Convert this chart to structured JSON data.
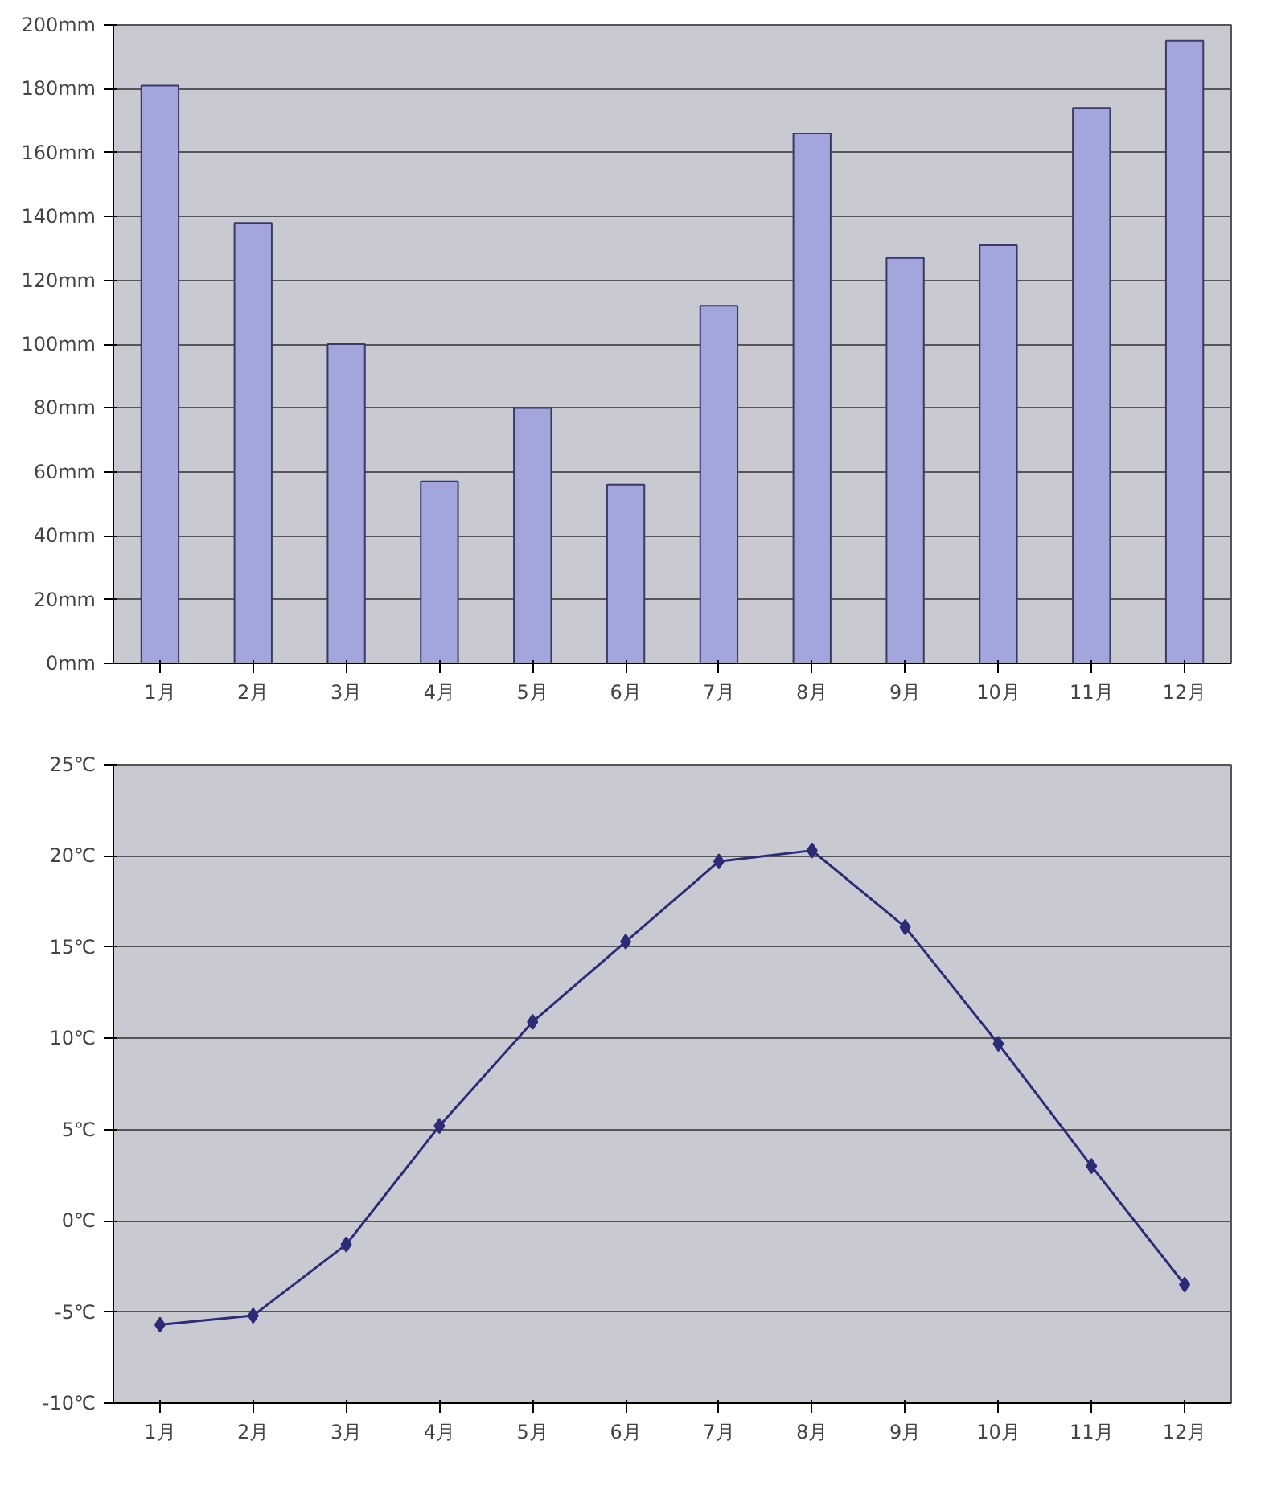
{
  "chart_data": [
    {
      "type": "bar",
      "categories": [
        "1月",
        "2月",
        "3月",
        "4月",
        "5月",
        "6月",
        "7月",
        "8月",
        "9月",
        "10月",
        "11月",
        "12月"
      ],
      "values": [
        181,
        138,
        100,
        57,
        80,
        56,
        112,
        166,
        127,
        131,
        174,
        195
      ],
      "color": "#a3a6dc",
      "ylim": [
        0,
        200
      ],
      "yticks": [
        {
          "value": 0,
          "label": "0mm"
        },
        {
          "value": 20,
          "label": "20mm"
        },
        {
          "value": 40,
          "label": "40mm"
        },
        {
          "value": 60,
          "label": "60mm"
        },
        {
          "value": 80,
          "label": "80mm"
        },
        {
          "value": 100,
          "label": "100mm"
        },
        {
          "value": 120,
          "label": "120mm"
        },
        {
          "value": 140,
          "label": "140mm"
        },
        {
          "value": 160,
          "label": "160mm"
        },
        {
          "value": 180,
          "label": "180mm"
        },
        {
          "value": 200,
          "label": "200mm"
        }
      ],
      "grid": "y"
    },
    {
      "type": "line",
      "categories": [
        "1月",
        "2月",
        "3月",
        "4月",
        "5月",
        "6月",
        "7月",
        "8月",
        "9月",
        "10月",
        "11月",
        "12月"
      ],
      "values": [
        -5.7,
        -5.2,
        -1.3,
        5.2,
        10.9,
        15.3,
        19.7,
        20.3,
        16.1,
        9.7,
        3.0,
        -3.5
      ],
      "color": "#2b2b78",
      "marker": "diamond",
      "line_style": "solid",
      "ylim": [
        -10,
        25
      ],
      "yticks": [
        {
          "value": -10,
          "label": "-10℃"
        },
        {
          "value": -5,
          "label": "-5℃"
        },
        {
          "value": 0,
          "label": "0℃"
        },
        {
          "value": 5,
          "label": "5℃"
        },
        {
          "value": 10,
          "label": "10℃"
        },
        {
          "value": 15,
          "label": "15℃"
        },
        {
          "value": 20,
          "label": "20℃"
        },
        {
          "value": 25,
          "label": "25℃"
        }
      ],
      "grid": "y"
    }
  ]
}
